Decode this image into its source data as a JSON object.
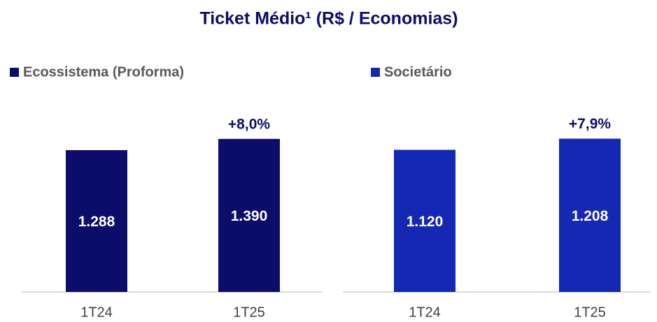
{
  "title": "Ticket Médio¹  (R$ / Economias)",
  "chart_data": [
    {
      "type": "bar",
      "categories": [
        "1T24",
        "1T25"
      ],
      "series": [
        {
          "name": "Ecossistema (Proforma)",
          "color": "#0c0c6a",
          "values": [
            1288,
            1390
          ],
          "value_labels": [
            "1.288",
            "1.390"
          ]
        }
      ],
      "change_labels": [
        null,
        "+8,0%"
      ],
      "ylim": [
        0,
        1700
      ]
    },
    {
      "type": "bar",
      "categories": [
        "1T24",
        "1T25"
      ],
      "series": [
        {
          "name": "Societário",
          "color": "#1428b3",
          "values": [
            1120,
            1208
          ],
          "value_labels": [
            "1.120",
            "1.208"
          ]
        }
      ],
      "change_labels": [
        null,
        "+7,9%"
      ],
      "ylim": [
        0,
        1475
      ]
    }
  ]
}
